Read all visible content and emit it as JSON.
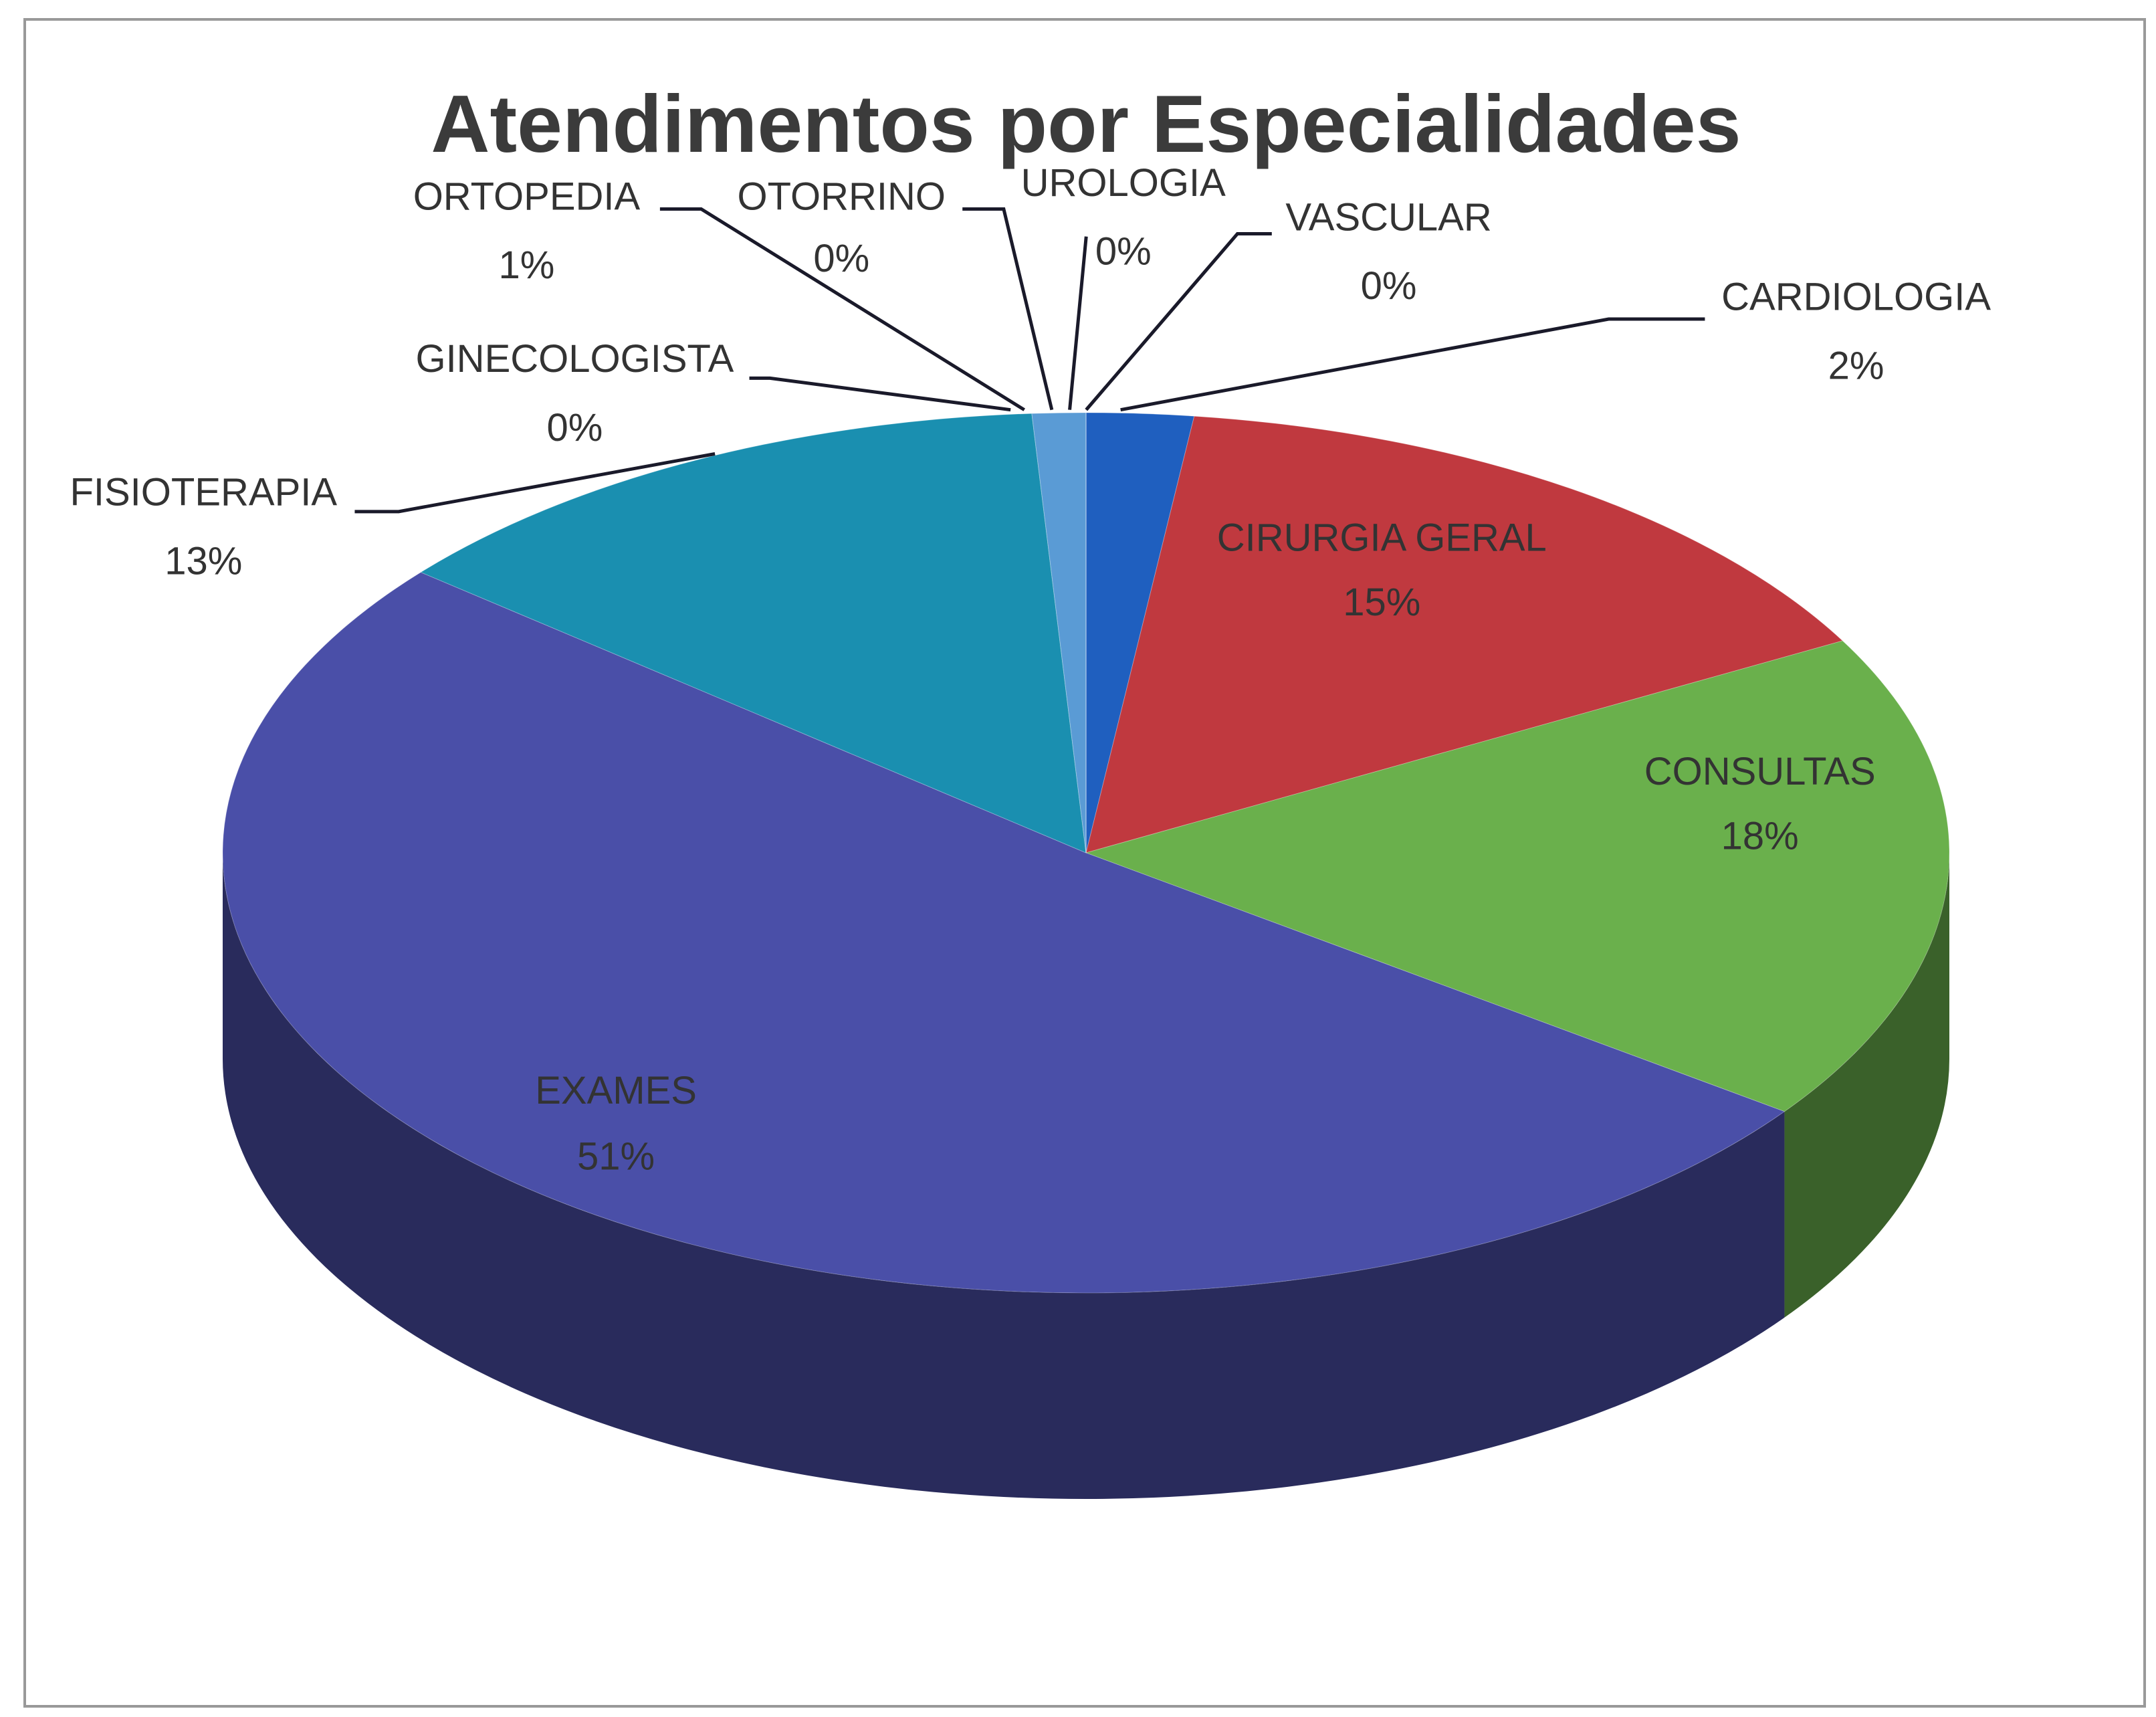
{
  "chart_data": {
    "type": "pie",
    "title": "Atendimentos por Especialidades",
    "categories": [
      "CARDIOLOGIA",
      "CIRURGIA GERAL",
      "CONSULTAS",
      "EXAMES",
      "FISIOTERAPIA",
      "GINECOLOGISTA",
      "ORTOPEDIA",
      "OTORRINO",
      "UROLOGIA",
      "VASCULAR"
    ],
    "values": [
      2,
      15,
      18,
      51,
      13,
      0,
      1,
      0,
      0,
      0
    ],
    "value_labels": [
      "2%",
      "15%",
      "18%",
      "51%",
      "13%",
      "0%",
      "1%",
      "0%",
      "0%",
      "0%"
    ],
    "colors": [
      "#1f5fbf",
      "#c0393f",
      "#6ab04c",
      "#4a4fa8",
      "#1a8fb0",
      "#e07b39",
      "#5a9bd5",
      "#d98aa0",
      "#9acd6a",
      "#8064a2"
    ]
  }
}
